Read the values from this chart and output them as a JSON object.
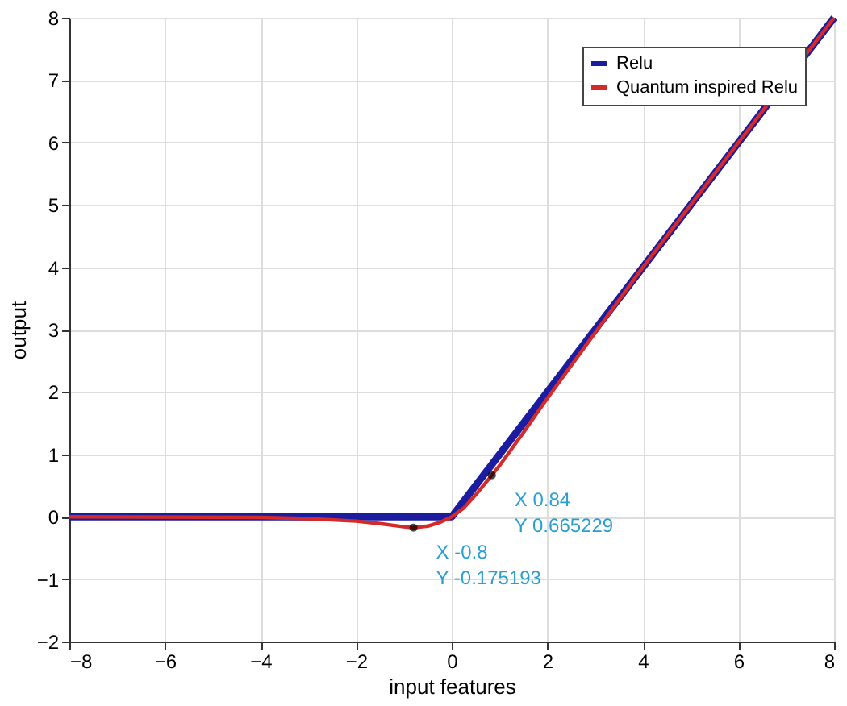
{
  "chart_data": {
    "type": "line",
    "xlabel": "input features",
    "ylabel": "output",
    "xlim": [
      -8,
      8
    ],
    "xticks": [
      -8,
      -6,
      -4,
      -2,
      0,
      2,
      4,
      6,
      8
    ],
    "ylim": [
      -2,
      8
    ],
    "yticks": [
      -2,
      -1,
      0,
      1,
      2,
      3,
      4,
      5,
      6,
      7,
      8
    ],
    "grid": true,
    "legend": "top right",
    "line_style": "solid",
    "marker": "none",
    "series": [
      {
        "name": "Relu",
        "color": "#1c1ca0",
        "x": [
          -8,
          0,
          8
        ],
        "values": [
          0,
          0,
          8
        ]
      },
      {
        "name": "Quantum inspired Relu",
        "color": "#d42a2a",
        "x": [
          -8,
          -4,
          -3,
          -2,
          -1.5,
          -1,
          -0.8,
          -0.5,
          -0.25,
          0,
          0.25,
          0.5,
          0.84,
          1,
          1.5,
          2,
          3,
          4,
          8
        ],
        "values": [
          0,
          -0.01,
          -0.03,
          -0.07,
          -0.11,
          -0.16,
          -0.175193,
          -0.15,
          -0.09,
          0,
          0.14,
          0.35,
          0.665229,
          0.82,
          1.35,
          1.9,
          2.95,
          4,
          8
        ]
      }
    ],
    "annotations": [
      {
        "text": "X -0.8\nY -0.175193",
        "x": -0.8,
        "y": -0.175193
      },
      {
        "text": "X 0.84\nY 0.665229",
        "x": 0.84,
        "y": 0.665229
      }
    ]
  }
}
